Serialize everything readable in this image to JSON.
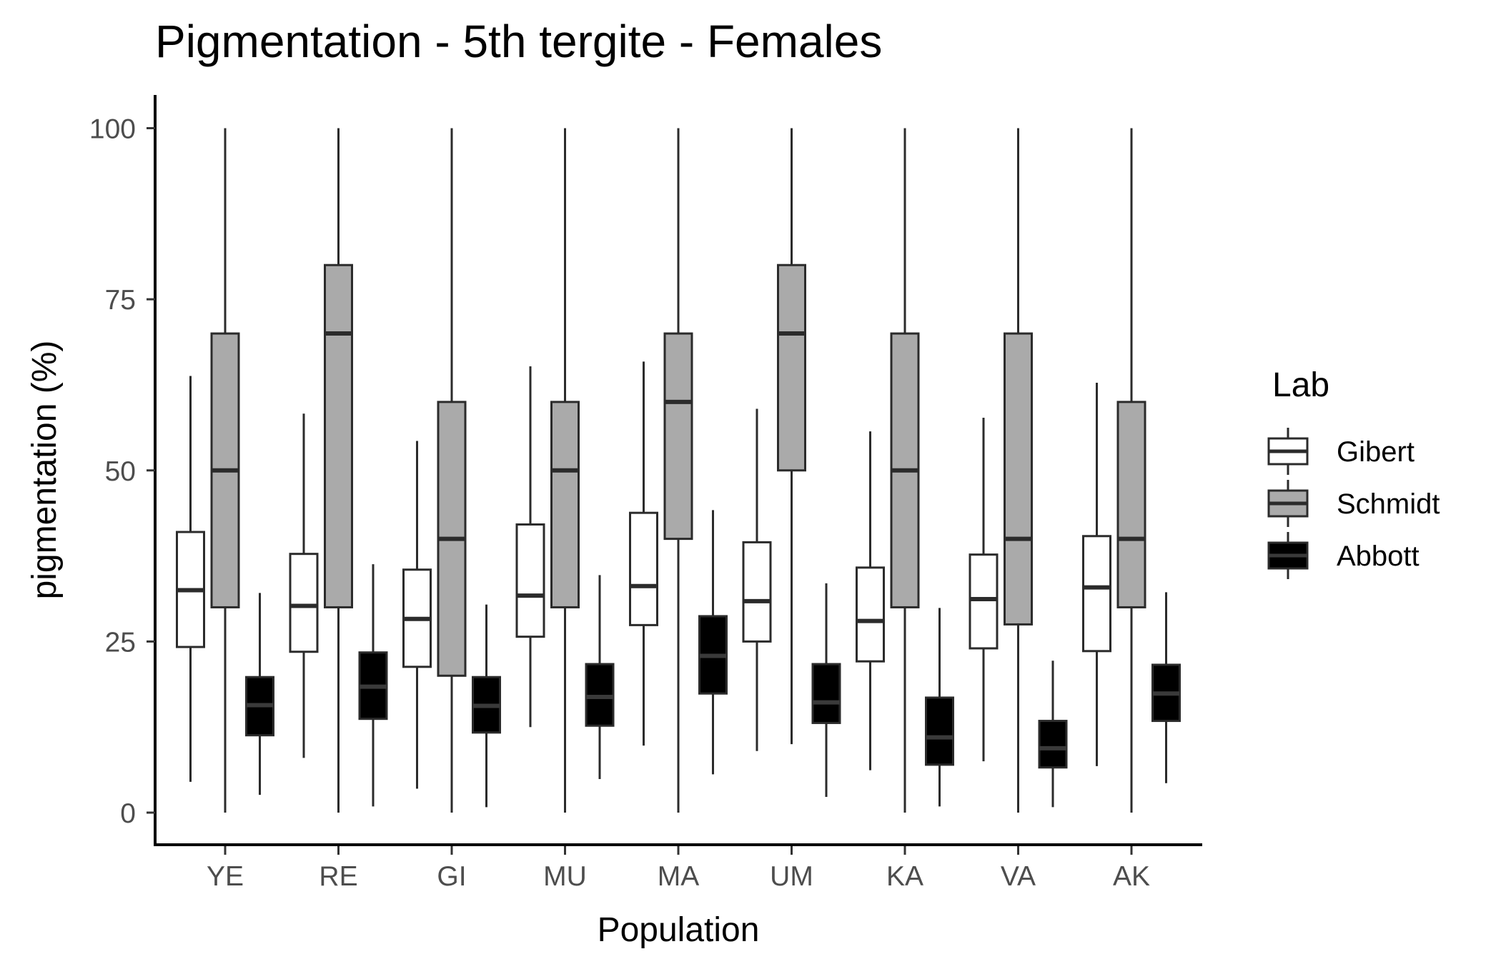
{
  "chart_data": {
    "type": "boxplot",
    "title": "Pigmentation - 5th tergite - Females",
    "xlabel": "Population",
    "ylabel": "pigmentation (%)",
    "ylim": [
      -5,
      105
    ],
    "yticks": [
      0,
      25,
      50,
      75,
      100
    ],
    "grid": false,
    "legend_position": "right",
    "categories": [
      "YE",
      "RE",
      "GI",
      "MU",
      "MA",
      "UM",
      "KA",
      "VA",
      "AK"
    ],
    "legend": {
      "title": "Lab"
    },
    "series": [
      {
        "name": "Gibert",
        "fill": "#ffffff",
        "boxes": [
          {
            "min": 4.5,
            "q1": 24.2,
            "median": 32.5,
            "q3": 41,
            "max": 63.8
          },
          {
            "min": 8,
            "q1": 23.5,
            "median": 30.2,
            "q3": 37.8,
            "max": 58.3
          },
          {
            "min": 3.5,
            "q1": 21.3,
            "median": 28.3,
            "q3": 35.5,
            "max": 54.3
          },
          {
            "min": 12.5,
            "q1": 25.7,
            "median": 31.7,
            "q3": 42.1,
            "max": 65.2
          },
          {
            "min": 9.8,
            "q1": 27.4,
            "median": 33.1,
            "q3": 43.8,
            "max": 65.9
          },
          {
            "min": 9,
            "q1": 25,
            "median": 30.9,
            "q3": 39.5,
            "max": 59
          },
          {
            "min": 6.2,
            "q1": 22.1,
            "median": 28,
            "q3": 35.8,
            "max": 55.7
          },
          {
            "min": 7.5,
            "q1": 24,
            "median": 31.2,
            "q3": 37.7,
            "max": 57.7
          },
          {
            "min": 6.8,
            "q1": 23.6,
            "median": 32.9,
            "q3": 40.4,
            "max": 62.8
          }
        ]
      },
      {
        "name": "Schmidt",
        "fill": "#aaaaaa",
        "boxes": [
          {
            "min": 0,
            "q1": 30,
            "median": 50,
            "q3": 70,
            "max": 100
          },
          {
            "min": 0,
            "q1": 30,
            "median": 70,
            "q3": 80,
            "max": 100
          },
          {
            "min": 0,
            "q1": 20,
            "median": 40,
            "q3": 60,
            "max": 100
          },
          {
            "min": 0,
            "q1": 30,
            "median": 50,
            "q3": 60,
            "max": 100
          },
          {
            "min": 0,
            "q1": 40,
            "median": 60,
            "q3": 70,
            "max": 100
          },
          {
            "min": 10,
            "q1": 50,
            "median": 70,
            "q3": 80,
            "max": 100
          },
          {
            "min": 0,
            "q1": 30,
            "median": 50,
            "q3": 70,
            "max": 100
          },
          {
            "min": 0,
            "q1": 27.5,
            "median": 40,
            "q3": 70,
            "max": 100
          },
          {
            "min": 0,
            "q1": 30,
            "median": 40,
            "q3": 60,
            "max": 100
          }
        ]
      },
      {
        "name": "Abbott",
        "fill": "#000000",
        "boxes": [
          {
            "min": 2.6,
            "q1": 11.3,
            "median": 15.7,
            "q3": 19.8,
            "max": 32.1
          },
          {
            "min": 0.9,
            "q1": 13.7,
            "median": 18.4,
            "q3": 23.4,
            "max": 36.3
          },
          {
            "min": 0.8,
            "q1": 11.7,
            "median": 15.6,
            "q3": 19.8,
            "max": 30.4
          },
          {
            "min": 4.9,
            "q1": 12.7,
            "median": 16.9,
            "q3": 21.7,
            "max": 34.7
          },
          {
            "min": 5.6,
            "q1": 17.4,
            "median": 22.9,
            "q3": 28.7,
            "max": 44.2
          },
          {
            "min": 2.3,
            "q1": 13.1,
            "median": 16.1,
            "q3": 21.7,
            "max": 33.5
          },
          {
            "min": 0.9,
            "q1": 7,
            "median": 11,
            "q3": 16.8,
            "max": 29.9
          },
          {
            "min": 0.8,
            "q1": 6.6,
            "median": 9.4,
            "q3": 13.4,
            "max": 22.2
          },
          {
            "min": 4.3,
            "q1": 13.4,
            "median": 17.4,
            "q3": 21.6,
            "max": 32.2
          }
        ]
      }
    ]
  }
}
